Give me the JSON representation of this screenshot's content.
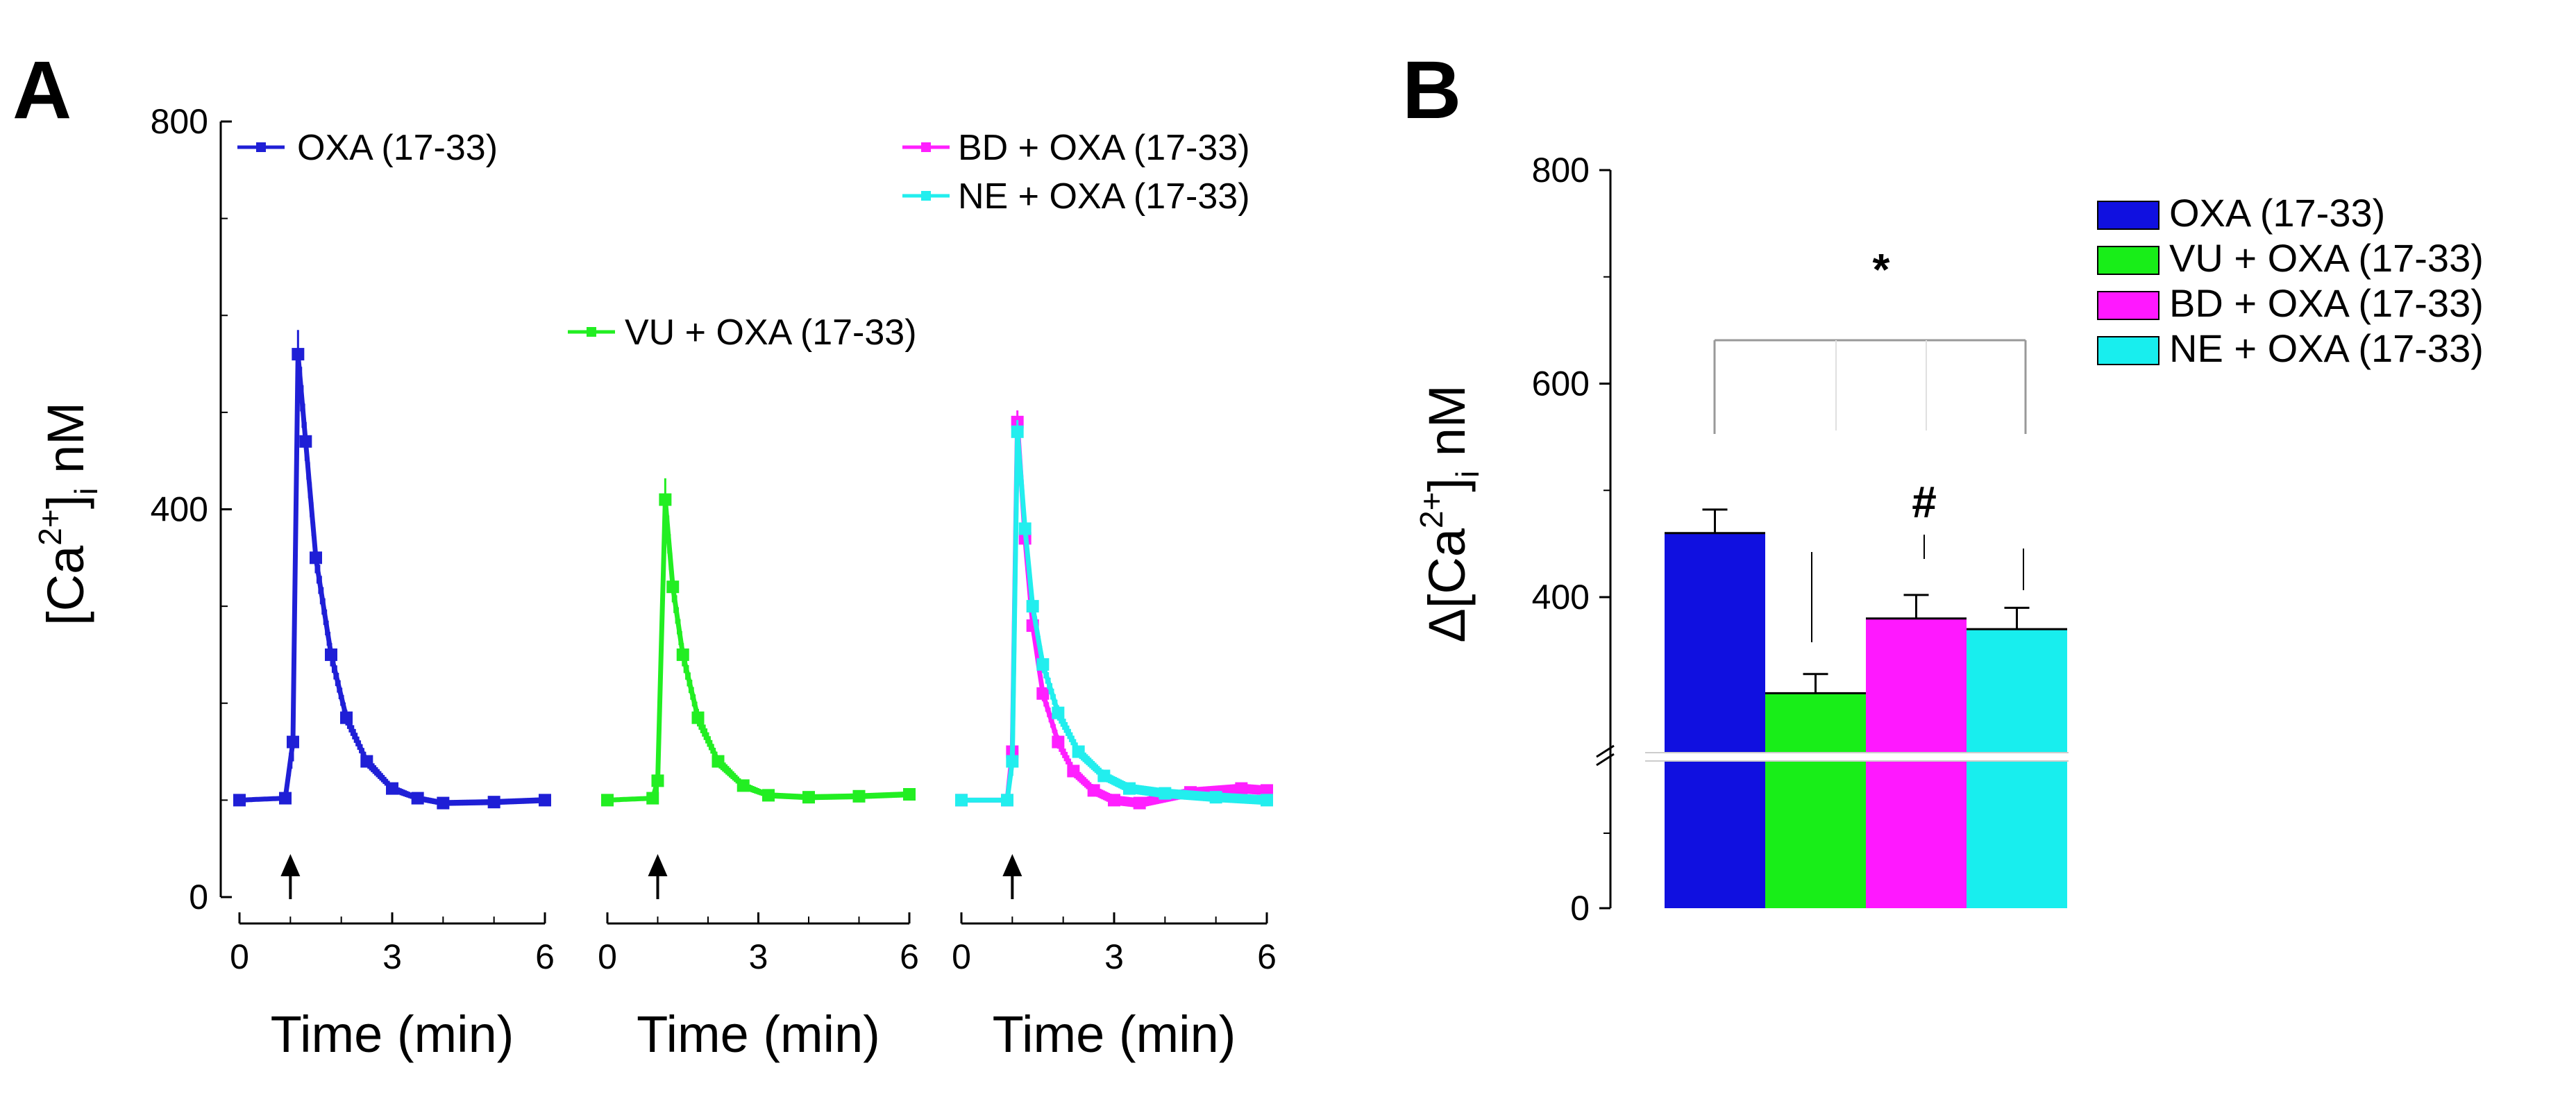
{
  "figure": {
    "panel_a_label": "A",
    "panel_b_label": "B"
  },
  "chart_data": [
    {
      "type": "line",
      "panel": "A",
      "ylabel": {
        "main": "[Ca",
        "sup": "2+",
        "close": "]",
        "sub": "i",
        "unit": " nM"
      },
      "ylim": [
        0,
        800
      ],
      "yticks": [
        "0",
        "400",
        "800"
      ],
      "xlabel": "Time (min)",
      "xlim": [
        0,
        6
      ],
      "xticks": [
        "0",
        "3",
        "6"
      ],
      "stimulus_time": 1,
      "subplots": [
        {
          "legend": [
            {
              "name": "OXA (17-33)",
              "color": "#1f1fd6"
            }
          ],
          "series": [
            {
              "name": "OXA (17-33)",
              "color": "#1f1fd6",
              "x": [
                0,
                0.9,
                1.05,
                1.15,
                1.3,
                1.5,
                1.8,
                2.1,
                2.5,
                3.0,
                3.5,
                4.0,
                5.0,
                6.0
              ],
              "y": [
                100,
                102,
                160,
                560,
                470,
                350,
                250,
                185,
                140,
                112,
                102,
                97,
                98,
                100
              ],
              "err": [
                0,
                0,
                20,
                25,
                20,
                16,
                12,
                8,
                6,
                4,
                3,
                3,
                3,
                3
              ]
            }
          ]
        },
        {
          "legend": [
            {
              "name": "VU + OXA (17-33)",
              "color": "#22ee22"
            }
          ],
          "series": [
            {
              "name": "VU + OXA (17-33)",
              "color": "#22ee22",
              "x": [
                0,
                0.9,
                1.0,
                1.15,
                1.3,
                1.5,
                1.8,
                2.2,
                2.7,
                3.2,
                4.0,
                5.0,
                6.0
              ],
              "y": [
                100,
                102,
                120,
                410,
                320,
                250,
                185,
                140,
                115,
                105,
                103,
                104,
                106
              ],
              "err": [
                0,
                0,
                15,
                22,
                16,
                12,
                9,
                6,
                4,
                3,
                3,
                3,
                3
              ]
            }
          ]
        },
        {
          "legend": [
            {
              "name": "BD + OXA (17-33)",
              "color": "#ff1fff"
            },
            {
              "name": "NE + OXA (17-33)",
              "color": "#22eeee"
            }
          ],
          "series": [
            {
              "name": "BD + OXA (17-33)",
              "color": "#ff1fff",
              "x": [
                0,
                0.9,
                1.0,
                1.1,
                1.25,
                1.4,
                1.6,
                1.9,
                2.2,
                2.6,
                3.0,
                3.5,
                4.5,
                5.5,
                6.0
              ],
              "y": [
                100,
                100,
                150,
                490,
                370,
                280,
                210,
                160,
                130,
                110,
                100,
                97,
                108,
                112,
                110
              ],
              "err": [
                0,
                0,
                15,
                12,
                12,
                10,
                8,
                7,
                6,
                5,
                5,
                5,
                5,
                5,
                5
              ]
            },
            {
              "name": "NE + OXA (17-33)",
              "color": "#22eeee",
              "x": [
                0,
                0.9,
                1.0,
                1.1,
                1.25,
                1.4,
                1.6,
                1.9,
                2.3,
                2.8,
                3.3,
                4.0,
                5.0,
                6.0
              ],
              "y": [
                100,
                100,
                140,
                480,
                380,
                300,
                240,
                190,
                150,
                125,
                112,
                107,
                103,
                100
              ],
              "err": [
                0,
                0,
                15,
                12,
                12,
                10,
                9,
                8,
                6,
                5,
                5,
                5,
                5,
                5
              ]
            }
          ]
        }
      ]
    },
    {
      "type": "bar",
      "panel": "B",
      "ylabel": {
        "pre": "Δ[Ca",
        "sup": "2+",
        "close": "]",
        "sub": "i",
        "unit": " nM"
      },
      "ylim": [
        0,
        800
      ],
      "yticks": [
        "0",
        "400",
        "600",
        "800"
      ],
      "axis_break": true,
      "categories": [
        "OXA (17-33)",
        "VU + OXA (17-33)",
        "BD + OXA (17-33)",
        "NE + OXA (17-33)"
      ],
      "values": [
        460,
        310,
        380,
        370
      ],
      "errors": [
        22,
        18,
        22,
        20
      ],
      "colors": [
        "#1010e0",
        "#18ee18",
        "#ff18ff",
        "#18eeee"
      ],
      "legend": [
        {
          "name": "OXA (17-33)",
          "color": "#1010e0"
        },
        {
          "name": "VU + OXA (17-33)",
          "color": "#18ee18"
        },
        {
          "name": "BD + OXA (17-33)",
          "color": "#ff18ff"
        },
        {
          "name": "NE + OXA (17-33)",
          "color": "#18eeee"
        }
      ],
      "annotations": {
        "star": "*",
        "hash": "#"
      }
    }
  ]
}
